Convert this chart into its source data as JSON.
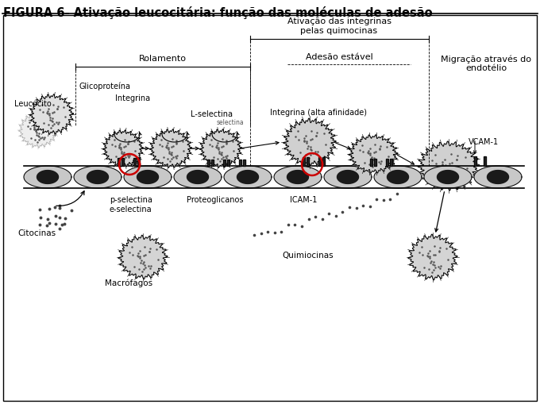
{
  "title": "FIGURA 6- Ativação leucocitária: função das moléculas de adesão",
  "title_fontsize": 10.5,
  "title_fontweight": "bold",
  "bg_color": "#ffffff",
  "labels": {
    "leucocito": "Leucócito",
    "glicoproteina": "Glicoproteína",
    "integrina": "Integrina",
    "l_selectina": "L-selectina",
    "rolamento": "Rolamento",
    "ativacao": "Ativação das integrinas\npelas quimocinas",
    "adesao_estavel": "Adesão estável",
    "migracao": "Migração através do\nendotélio",
    "integrina_alta": "Integrina (alta afinidade)",
    "vcam1": "VCAM-1",
    "p_selectina": "p-selectina\ne-selectina",
    "proteoglicanos": "Proteoglicanos",
    "icam1": "ICAM-1",
    "citocinas": "Citocinas",
    "macrofagos": "Macrófagos",
    "quimiocinas": "Quimiocinas"
  },
  "colors": {
    "cell_fill": "#d8d8d8",
    "cell_edge": "#000000",
    "red_circle": "#cc0000",
    "text_color": "#000000"
  }
}
